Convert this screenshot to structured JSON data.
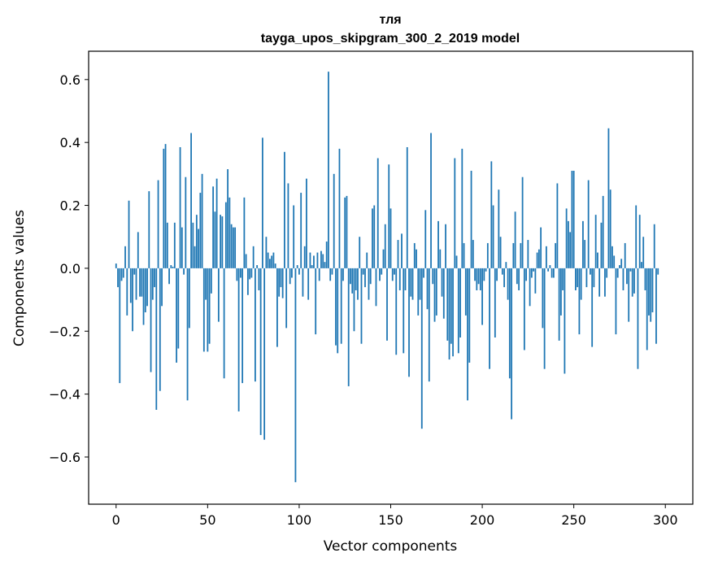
{
  "chart_data": {
    "type": "bar",
    "title_line1": "тля",
    "title_line2": "tayga_upos_skipgram_300_2_2019 model",
    "xlabel": "Vector components",
    "ylabel": "Components values",
    "xlim": [
      -15,
      315
    ],
    "ylim": [
      -0.75,
      0.69
    ],
    "xticks": [
      0,
      50,
      100,
      150,
      200,
      250,
      300
    ],
    "yticks": [
      -0.6,
      -0.4,
      -0.2,
      0.0,
      0.2,
      0.4,
      0.6
    ],
    "xtick_labels": [
      "0",
      "50",
      "100",
      "150",
      "200",
      "250",
      "300"
    ],
    "ytick_labels": [
      "−0.6",
      "−0.4",
      "−0.2",
      "0.0",
      "0.2",
      "0.4",
      "0.6"
    ],
    "bar_color": "#1f77b4",
    "values": [
      0.015,
      -0.06,
      -0.365,
      -0.04,
      -0.03,
      0.07,
      -0.15,
      0.215,
      -0.11,
      -0.2,
      -0.02,
      -0.1,
      0.115,
      -0.09,
      -0.09,
      -0.18,
      -0.14,
      -0.12,
      0.245,
      -0.33,
      -0.1,
      -0.06,
      -0.45,
      0.28,
      -0.39,
      -0.12,
      0.38,
      0.395,
      0.145,
      -0.05,
      0.01,
      0.005,
      0.145,
      -0.3,
      -0.255,
      0.385,
      0.13,
      -0.02,
      0.29,
      -0.42,
      -0.19,
      0.43,
      0.145,
      0.07,
      0.17,
      0.125,
      0.24,
      0.3,
      -0.265,
      -0.1,
      -0.265,
      -0.24,
      -0.08,
      0.26,
      0.18,
      0.285,
      -0.17,
      0.17,
      0.165,
      -0.35,
      0.21,
      0.315,
      0.225,
      0.14,
      0.13,
      0.13,
      -0.04,
      -0.455,
      -0.03,
      -0.365,
      0.225,
      0.045,
      -0.085,
      -0.035,
      -0.03,
      0.07,
      -0.36,
      0.01,
      -0.07,
      -0.53,
      0.415,
      -0.545,
      0.1,
      0.05,
      0.03,
      0.04,
      0.05,
      0.015,
      -0.25,
      -0.09,
      -0.06,
      -0.095,
      0.37,
      -0.19,
      0.27,
      -0.05,
      -0.03,
      0.2,
      -0.68,
      0.01,
      -0.02,
      0.24,
      -0.09,
      0.07,
      0.285,
      -0.1,
      0.05,
      0.01,
      0.04,
      -0.21,
      0.05,
      -0.04,
      0.055,
      0.045,
      0.02,
      0.085,
      0.625,
      -0.04,
      -0.02,
      0.3,
      -0.245,
      -0.27,
      0.38,
      -0.24,
      -0.04,
      0.225,
      0.23,
      -0.375,
      -0.05,
      -0.08,
      -0.2,
      -0.07,
      -0.1,
      0.1,
      -0.24,
      -0.02,
      -0.06,
      0.05,
      -0.1,
      -0.05,
      0.19,
      0.2,
      -0.12,
      0.35,
      -0.04,
      -0.02,
      0.06,
      0.14,
      -0.23,
      0.33,
      0.19,
      -0.04,
      -0.02,
      -0.275,
      0.09,
      -0.07,
      0.11,
      -0.27,
      -0.07,
      0.385,
      -0.345,
      -0.09,
      -0.1,
      0.08,
      0.06,
      -0.15,
      -0.1,
      -0.51,
      -0.03,
      0.185,
      -0.13,
      -0.36,
      0.43,
      -0.05,
      -0.17,
      -0.15,
      0.15,
      0.06,
      -0.09,
      -0.16,
      0.14,
      -0.23,
      -0.29,
      -0.24,
      -0.28,
      0.35,
      0.04,
      -0.27,
      -0.22,
      0.38,
      0.08,
      -0.15,
      -0.42,
      -0.3,
      0.31,
      0.09,
      -0.04,
      -0.07,
      -0.05,
      -0.07,
      -0.18,
      -0.04,
      -0.01,
      0.08,
      -0.32,
      0.34,
      0.2,
      -0.22,
      -0.04,
      0.25,
      0.1,
      -0.02,
      -0.06,
      0.02,
      -0.1,
      -0.35,
      -0.48,
      0.08,
      0.18,
      -0.05,
      -0.07,
      0.08,
      0.29,
      -0.26,
      -0.04,
      0.09,
      -0.12,
      -0.03,
      -0.01,
      -0.08,
      0.05,
      0.06,
      0.13,
      -0.19,
      -0.32,
      0.07,
      -0.01,
      0.01,
      -0.03,
      -0.03,
      0.08,
      0.27,
      -0.23,
      -0.15,
      -0.07,
      -0.335,
      0.19,
      0.15,
      0.115,
      0.31,
      0.31,
      -0.07,
      -0.06,
      -0.21,
      -0.1,
      0.15,
      0.09,
      -0.06,
      0.28,
      -0.02,
      -0.25,
      -0.06,
      0.17,
      0.05,
      -0.09,
      0.145,
      0.23,
      -0.09,
      -0.03,
      0.445,
      0.25,
      0.07,
      0.04,
      -0.21,
      -0.03,
      0.01,
      0.03,
      -0.07,
      0.08,
      -0.05,
      -0.17,
      -0.01,
      -0.09,
      -0.08,
      0.2,
      -0.32,
      0.17,
      0.02,
      0.1,
      -0.07,
      -0.26,
      -0.15,
      -0.17,
      -0.14,
      0.14,
      -0.24,
      -0.02,
      0.0
    ]
  }
}
